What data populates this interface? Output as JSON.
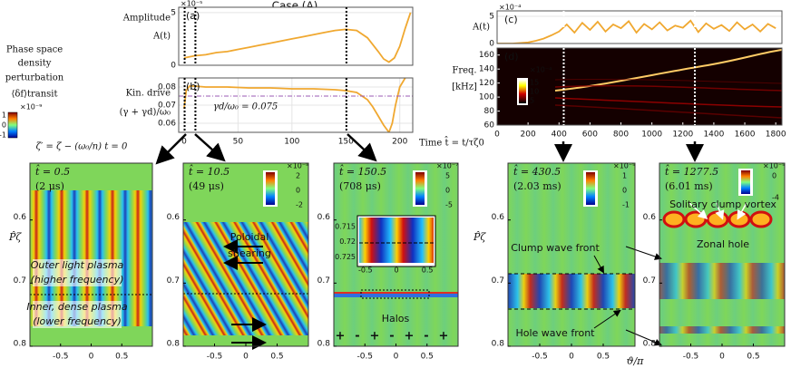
{
  "title": "Case (A)",
  "legend": {
    "lines": [
      "Phase space",
      "density",
      "perturbation",
      "⟨δf⟩transit"
    ],
    "exponent": "×10⁻⁹",
    "ticks": [
      1,
      0,
      -1
    ],
    "zeta": "ζ′ = ζ − (ω₀/n) t = 0"
  },
  "chart_data": [
    {
      "type": "line",
      "label": "(a)",
      "ylabel": [
        "Amplitude",
        "A(t)"
      ],
      "exponent": "×10⁻⁵",
      "xlim": [
        -5,
        212
      ],
      "ylim": [
        0,
        5.5
      ],
      "yticks": [
        0,
        5
      ],
      "grid": true,
      "markers": [
        0.5,
        10.5,
        150.5
      ],
      "x": [
        0,
        10,
        20,
        30,
        40,
        50,
        60,
        70,
        80,
        90,
        100,
        110,
        120,
        130,
        140,
        150,
        160,
        170,
        180,
        185,
        190,
        195,
        200,
        205,
        210
      ],
      "series": [
        {
          "color": "#f0a830",
          "values": [
            0.7,
            0.9,
            1.0,
            1.2,
            1.3,
            1.5,
            1.7,
            1.9,
            2.1,
            2.3,
            2.5,
            2.7,
            2.9,
            3.1,
            3.3,
            3.4,
            3.3,
            2.6,
            1.3,
            0.6,
            0.3,
            0.7,
            1.8,
            3.5,
            5
          ]
        }
      ]
    },
    {
      "type": "line",
      "label": "(b)",
      "ylabel": [
        "Kin. drive",
        "(γ + γd)/ω₀"
      ],
      "xlim": [
        -5,
        212
      ],
      "ylim": [
        0.055,
        0.085
      ],
      "yticks": [
        0.06,
        0.07,
        0.08
      ],
      "xticks": [
        0,
        50,
        100,
        150,
        200
      ],
      "grid": true,
      "threshold": {
        "value": 0.075,
        "label": "γd/ω₀ = 0.075",
        "color": "#9b59b6"
      },
      "x": [
        0,
        2,
        5,
        10,
        20,
        40,
        60,
        80,
        100,
        120,
        140,
        150,
        160,
        170,
        175,
        180,
        185,
        190,
        193,
        196,
        200,
        205
      ],
      "series": [
        {
          "color": "#f0a830",
          "values": [
            0.068,
            0.078,
            0.0805,
            0.0805,
            0.08,
            0.08,
            0.0795,
            0.0795,
            0.079,
            0.079,
            0.0785,
            0.078,
            0.077,
            0.073,
            0.069,
            0.064,
            0.059,
            0.055,
            0.06,
            0.07,
            0.08,
            0.085
          ]
        }
      ]
    },
    {
      "type": "line",
      "label": "(c)",
      "ylabel": [
        "A(t)"
      ],
      "exponent": "×10⁻⁴",
      "xlim": [
        0,
        1840
      ],
      "ylim": [
        0,
        6
      ],
      "yticks": [
        0,
        5
      ],
      "grid": true,
      "markers": [
        430.5,
        1277.5
      ],
      "x": [
        0,
        50,
        100,
        150,
        200,
        250,
        300,
        350,
        400,
        450,
        500,
        550,
        600,
        650,
        700,
        750,
        800,
        850,
        900,
        950,
        1000,
        1050,
        1100,
        1150,
        1200,
        1250,
        1300,
        1350,
        1400,
        1450,
        1500,
        1550,
        1600,
        1650,
        1700,
        1750,
        1800
      ],
      "series": [
        {
          "color": "#f0a830",
          "values": [
            0,
            0,
            0,
            0.1,
            0.2,
            0.5,
            0.9,
            1.5,
            2.2,
            3.5,
            2.0,
            3.8,
            2.5,
            4.0,
            2.2,
            3.5,
            2.8,
            4.1,
            2.0,
            3.6,
            2.6,
            3.9,
            2.4,
            3.3,
            2.9,
            4.2,
            2.1,
            3.7,
            2.7,
            3.4,
            2.3,
            3.9,
            2.6,
            3.5,
            2.2,
            3.6,
            2.8
          ]
        }
      ]
    },
    {
      "type": "heatmap",
      "label": "(d)",
      "ylabel": [
        "Freq.",
        "[kHz]"
      ],
      "xlabel": "Time t̂ = t/τζ0",
      "xlim": [
        0,
        1840
      ],
      "ylim": [
        60,
        170
      ],
      "yticks": [
        60,
        80,
        100,
        120,
        140,
        160
      ],
      "xticks": [
        0,
        200,
        400,
        600,
        800,
        1000,
        1200,
        1400,
        1600,
        1800
      ],
      "colorbar": {
        "exponent": "×10⁻⁴",
        "ticks": [
          15,
          10,
          5
        ]
      }
    }
  ],
  "snapshot_axes": {
    "xlim": [
      -1,
      1
    ],
    "xticks": [
      -0.5,
      0,
      0.5
    ],
    "ylim": [
      0.51,
      0.8
    ],
    "yticks": [
      0.6,
      0.7,
      0.8
    ],
    "xlabel": "ϑ/π",
    "ylabel": "P̂ζ"
  },
  "snapshots": [
    {
      "time": "t̂ = 0.5",
      "duration": "(2 μs)",
      "notes": [
        "Outer light plasma",
        "(higher frequency)",
        "Inner, dense plasma",
        "(lower frequency)"
      ]
    },
    {
      "time": "t̂ = 10.5",
      "duration": "(49 μs)",
      "colorbar": {
        "exponent": "×10⁻⁸",
        "ticks": [
          2,
          0,
          -2
        ]
      },
      "notes": [
        "Poloidal",
        "shearing"
      ]
    },
    {
      "time": "t̂ = 150.5",
      "duration": "(708 μs)",
      "colorbar": {
        "exponent": "×10⁻⁷",
        "ticks": [
          5,
          0,
          -5
        ]
      },
      "notes": [
        "Halos"
      ],
      "signs": [
        "+",
        "-",
        "+",
        "-",
        "+",
        "-",
        "+"
      ],
      "inset": {
        "yticks": [
          0.715,
          0.72,
          0.725
        ],
        "xticks": [
          -0.5,
          0,
          0.5
        ]
      }
    },
    {
      "time": "t̂ = 430.5",
      "duration": "(2.03 ms)",
      "colorbar": {
        "exponent": "×10⁻⁵",
        "ticks": [
          1,
          0,
          -1
        ]
      },
      "notes": [
        "Clump wave front",
        "Hole wave front"
      ]
    },
    {
      "time": "t̂ = 1277.5",
      "duration": "(6.01 ms)",
      "colorbar": {
        "exponent": "×10⁻⁵",
        "ticks": [
          0,
          -4
        ]
      },
      "notes": [
        "Solitary clump vortex",
        "Zonal hole"
      ]
    }
  ]
}
